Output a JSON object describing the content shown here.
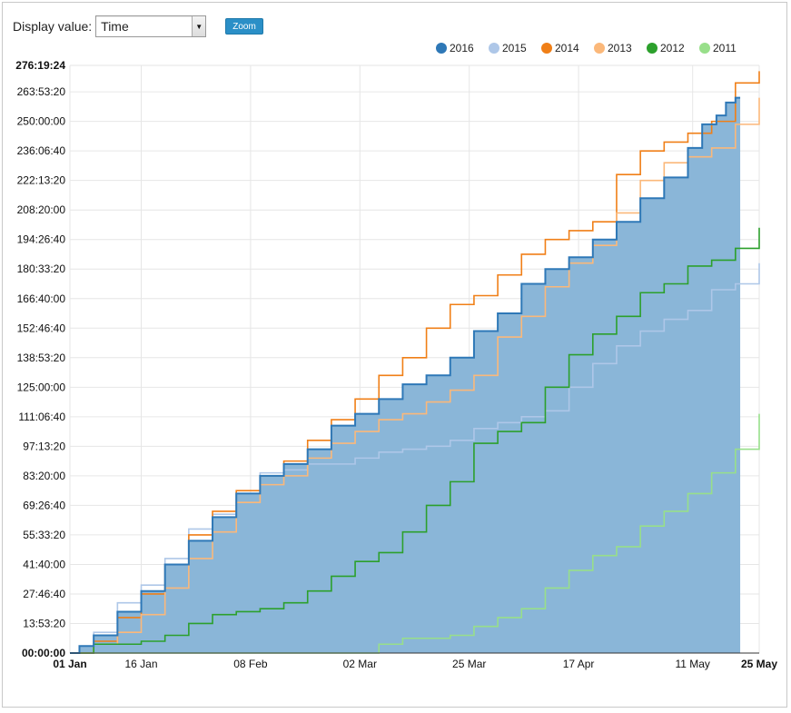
{
  "controls": {
    "display_label": "Display value:",
    "display_value": "Time",
    "zoom_label": "Zoom"
  },
  "chart_data": {
    "type": "line",
    "cumulative": true,
    "step": true,
    "y_format": "hh:mm:ss",
    "x_range": [
      "01 Jan",
      "25 May"
    ],
    "y_range_seconds": [
      0,
      994764
    ],
    "x_ticks": [
      {
        "label": "01 Jan",
        "day": 0,
        "bold": true
      },
      {
        "label": "16 Jan",
        "day": 15,
        "bold": false
      },
      {
        "label": "08 Feb",
        "day": 38,
        "bold": false
      },
      {
        "label": "02 Mar",
        "day": 61,
        "bold": false
      },
      {
        "label": "25 Mar",
        "day": 84,
        "bold": false
      },
      {
        "label": "17 Apr",
        "day": 107,
        "bold": false
      },
      {
        "label": "11 May",
        "day": 131,
        "bold": false
      },
      {
        "label": "25 May",
        "day": 145,
        "bold": true
      }
    ],
    "y_ticks": [
      {
        "label": "00:00:00",
        "seconds": 0,
        "bold": true
      },
      {
        "label": "13:53:20",
        "seconds": 50000
      },
      {
        "label": "27:46:40",
        "seconds": 100000
      },
      {
        "label": "41:40:00",
        "seconds": 150000
      },
      {
        "label": "55:33:20",
        "seconds": 200000
      },
      {
        "label": "69:26:40",
        "seconds": 250000
      },
      {
        "label": "83:20:00",
        "seconds": 300000
      },
      {
        "label": "97:13:20",
        "seconds": 350000
      },
      {
        "label": "111:06:40",
        "seconds": 400000
      },
      {
        "label": "125:00:00",
        "seconds": 450000
      },
      {
        "label": "138:53:20",
        "seconds": 500000
      },
      {
        "label": "152:46:40",
        "seconds": 550000
      },
      {
        "label": "166:40:00",
        "seconds": 600000
      },
      {
        "label": "180:33:20",
        "seconds": 650000
      },
      {
        "label": "194:26:40",
        "seconds": 700000
      },
      {
        "label": "208:20:00",
        "seconds": 750000
      },
      {
        "label": "222:13:20",
        "seconds": 800000
      },
      {
        "label": "236:06:40",
        "seconds": 850000
      },
      {
        "label": "250:00:00",
        "seconds": 900000
      },
      {
        "label": "263:53:20",
        "seconds": 950000
      },
      {
        "label": "276:19:24",
        "seconds": 994764,
        "bold": true
      }
    ],
    "legend_position": "top-right",
    "series": [
      {
        "name": "2016",
        "color": "#2e78b7",
        "filled": true,
        "fill": "#8ab6d8",
        "points": [
          [
            0,
            0
          ],
          [
            2,
            12000
          ],
          [
            5,
            30000
          ],
          [
            10,
            70000
          ],
          [
            15,
            105000
          ],
          [
            20,
            150000
          ],
          [
            25,
            190000
          ],
          [
            30,
            230000
          ],
          [
            35,
            270000
          ],
          [
            40,
            300000
          ],
          [
            45,
            320000
          ],
          [
            50,
            345000
          ],
          [
            55,
            385000
          ],
          [
            60,
            405000
          ],
          [
            65,
            430000
          ],
          [
            70,
            455000
          ],
          [
            75,
            470000
          ],
          [
            80,
            500000
          ],
          [
            85,
            545000
          ],
          [
            90,
            575000
          ],
          [
            95,
            625000
          ],
          [
            100,
            650000
          ],
          [
            105,
            670000
          ],
          [
            110,
            700000
          ],
          [
            115,
            730000
          ],
          [
            120,
            770000
          ],
          [
            125,
            805000
          ],
          [
            130,
            855000
          ],
          [
            133,
            895000
          ],
          [
            136,
            910000
          ],
          [
            138,
            932000
          ],
          [
            140,
            940000
          ],
          [
            141,
            940000
          ]
        ]
      },
      {
        "name": "2015",
        "color": "#aec7e8",
        "filled": false,
        "points": [
          [
            0,
            0
          ],
          [
            5,
            35000
          ],
          [
            10,
            85000
          ],
          [
            15,
            115000
          ],
          [
            20,
            160000
          ],
          [
            25,
            210000
          ],
          [
            30,
            235000
          ],
          [
            35,
            270000
          ],
          [
            40,
            305000
          ],
          [
            45,
            310000
          ],
          [
            50,
            320000
          ],
          [
            55,
            320000
          ],
          [
            60,
            330000
          ],
          [
            65,
            340000
          ],
          [
            70,
            345000
          ],
          [
            75,
            350000
          ],
          [
            80,
            360000
          ],
          [
            85,
            380000
          ],
          [
            90,
            390000
          ],
          [
            95,
            400000
          ],
          [
            100,
            410000
          ],
          [
            105,
            450000
          ],
          [
            110,
            490000
          ],
          [
            115,
            520000
          ],
          [
            120,
            545000
          ],
          [
            125,
            565000
          ],
          [
            130,
            580000
          ],
          [
            135,
            615000
          ],
          [
            140,
            625000
          ],
          [
            145,
            660000
          ]
        ]
      },
      {
        "name": "2014",
        "color": "#f07f17",
        "filled": false,
        "points": [
          [
            0,
            0
          ],
          [
            5,
            20000
          ],
          [
            10,
            60000
          ],
          [
            15,
            100000
          ],
          [
            20,
            150000
          ],
          [
            25,
            200000
          ],
          [
            30,
            240000
          ],
          [
            35,
            275000
          ],
          [
            40,
            300000
          ],
          [
            45,
            325000
          ],
          [
            50,
            360000
          ],
          [
            55,
            395000
          ],
          [
            60,
            430000
          ],
          [
            65,
            470000
          ],
          [
            70,
            500000
          ],
          [
            75,
            550000
          ],
          [
            80,
            590000
          ],
          [
            85,
            605000
          ],
          [
            90,
            640000
          ],
          [
            95,
            675000
          ],
          [
            100,
            700000
          ],
          [
            105,
            715000
          ],
          [
            110,
            730000
          ],
          [
            115,
            810000
          ],
          [
            120,
            850000
          ],
          [
            125,
            865000
          ],
          [
            130,
            880000
          ],
          [
            135,
            900000
          ],
          [
            140,
            965000
          ],
          [
            145,
            985000
          ]
        ]
      },
      {
        "name": "2013",
        "color": "#fbb87a",
        "filled": false,
        "points": [
          [
            0,
            0
          ],
          [
            5,
            15000
          ],
          [
            10,
            35000
          ],
          [
            15,
            65000
          ],
          [
            20,
            110000
          ],
          [
            25,
            160000
          ],
          [
            30,
            205000
          ],
          [
            35,
            255000
          ],
          [
            40,
            285000
          ],
          [
            45,
            300000
          ],
          [
            50,
            330000
          ],
          [
            55,
            355000
          ],
          [
            60,
            375000
          ],
          [
            65,
            395000
          ],
          [
            70,
            405000
          ],
          [
            75,
            425000
          ],
          [
            80,
            445000
          ],
          [
            85,
            470000
          ],
          [
            90,
            535000
          ],
          [
            95,
            570000
          ],
          [
            100,
            620000
          ],
          [
            105,
            660000
          ],
          [
            110,
            690000
          ],
          [
            115,
            745000
          ],
          [
            120,
            800000
          ],
          [
            125,
            830000
          ],
          [
            130,
            840000
          ],
          [
            135,
            855000
          ],
          [
            140,
            895000
          ],
          [
            145,
            940000
          ]
        ]
      },
      {
        "name": "2012",
        "color": "#2ca02c",
        "filled": false,
        "points": [
          [
            0,
            0
          ],
          [
            5,
            15000
          ],
          [
            10,
            15000
          ],
          [
            15,
            20000
          ],
          [
            20,
            30000
          ],
          [
            25,
            50000
          ],
          [
            30,
            65000
          ],
          [
            35,
            70000
          ],
          [
            40,
            75000
          ],
          [
            45,
            85000
          ],
          [
            50,
            105000
          ],
          [
            55,
            130000
          ],
          [
            60,
            155000
          ],
          [
            65,
            170000
          ],
          [
            70,
            205000
          ],
          [
            75,
            250000
          ],
          [
            80,
            290000
          ],
          [
            85,
            355000
          ],
          [
            90,
            375000
          ],
          [
            95,
            390000
          ],
          [
            100,
            450000
          ],
          [
            105,
            505000
          ],
          [
            110,
            540000
          ],
          [
            115,
            570000
          ],
          [
            120,
            610000
          ],
          [
            125,
            625000
          ],
          [
            130,
            655000
          ],
          [
            135,
            665000
          ],
          [
            140,
            685000
          ],
          [
            145,
            720000
          ]
        ]
      },
      {
        "name": "2011",
        "color": "#98df8a",
        "filled": false,
        "points": [
          [
            0,
            0
          ],
          [
            40,
            0
          ],
          [
            60,
            0
          ],
          [
            65,
            15000
          ],
          [
            70,
            25000
          ],
          [
            75,
            25000
          ],
          [
            80,
            30000
          ],
          [
            85,
            45000
          ],
          [
            90,
            60000
          ],
          [
            95,
            75000
          ],
          [
            100,
            110000
          ],
          [
            105,
            140000
          ],
          [
            110,
            165000
          ],
          [
            115,
            180000
          ],
          [
            120,
            215000
          ],
          [
            125,
            240000
          ],
          [
            130,
            270000
          ],
          [
            135,
            305000
          ],
          [
            140,
            345000
          ],
          [
            145,
            405000
          ]
        ]
      }
    ]
  }
}
